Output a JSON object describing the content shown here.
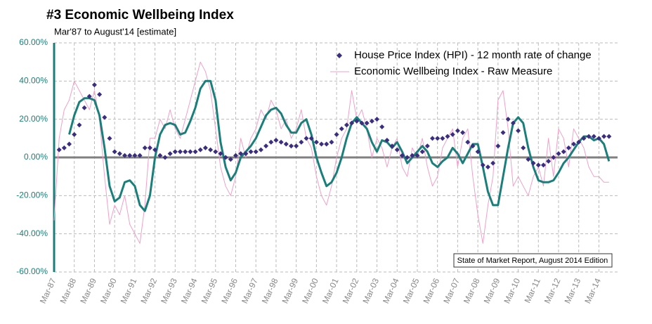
{
  "chart_data": {
    "type": "line",
    "title": "#3 Economic Wellbeing Index",
    "subtitle": "Mar'87 to August'14 [estimate]",
    "annotation": "State of Market Report, August 2014 Edition",
    "categories": [
      "Mar-87",
      null,
      null,
      null,
      "Mar-88",
      null,
      null,
      null,
      "Mar-89",
      null,
      null,
      null,
      "Mar-90",
      null,
      null,
      null,
      "Mar-91",
      null,
      null,
      null,
      "Mar-92",
      null,
      null,
      null,
      "Mar-93",
      null,
      null,
      null,
      "Mar-94",
      null,
      null,
      null,
      "Mar-95",
      null,
      null,
      null,
      "Mar-96",
      null,
      null,
      null,
      "Mar-97",
      null,
      null,
      null,
      "Mar-98",
      null,
      null,
      null,
      "Mar-99",
      null,
      null,
      null,
      "Mar-00",
      null,
      null,
      null,
      "Mar-01",
      null,
      null,
      null,
      "Mar-02",
      null,
      null,
      null,
      "Mar-03",
      null,
      null,
      null,
      "Mar-04",
      null,
      null,
      null,
      "Mar-05",
      null,
      null,
      null,
      "Mar-06",
      null,
      null,
      null,
      "Mar-07",
      null,
      null,
      null,
      "Mar-08",
      null,
      null,
      null,
      "Mar-09",
      null,
      null,
      null,
      "Mar-10",
      null,
      null,
      null,
      "Mar-11",
      null,
      null,
      null,
      "Mar-12",
      null,
      null,
      null,
      "Mar-13",
      null,
      null,
      null,
      "Mar-14",
      null,
      null
    ],
    "series": [
      {
        "name": "House Price Index (HPI) - 12 month rate of change",
        "style": "dots",
        "color": "#3b2d80",
        "values": [
          null,
          4,
          5,
          7,
          12,
          17,
          26,
          32,
          38,
          33,
          21,
          10,
          3,
          2,
          1,
          1,
          1,
          1,
          5,
          5,
          4,
          1,
          0,
          2,
          3,
          3,
          3,
          3,
          3,
          4,
          5,
          4,
          3,
          2,
          0,
          -1,
          1,
          2,
          2,
          3,
          3,
          4,
          6,
          8,
          9,
          8,
          7,
          6,
          6,
          8,
          10,
          10,
          8,
          7,
          7,
          8,
          12,
          15,
          17,
          18,
          19,
          18,
          18,
          19,
          20,
          16,
          9,
          6,
          4,
          1,
          0,
          1,
          1,
          3,
          6,
          10,
          10,
          10,
          11,
          12,
          14,
          13,
          8,
          6,
          3,
          -4,
          -5,
          -3,
          6,
          13,
          20,
          18,
          14,
          5,
          -1,
          -3,
          -4,
          -4,
          -2,
          0,
          2,
          3,
          5,
          7,
          8,
          10,
          11,
          11,
          10,
          11,
          11
        ]
      },
      {
        "name": "Economic Wellbeing Index - Raw Measure",
        "style": "thin",
        "color": "#f0a0c8",
        "values": [
          -33,
          10,
          25,
          30,
          40,
          35,
          30,
          25,
          35,
          20,
          -10,
          -35,
          -25,
          -30,
          -20,
          -35,
          -40,
          -45,
          -25,
          10,
          10,
          20,
          15,
          25,
          15,
          10,
          20,
          30,
          40,
          50,
          45,
          35,
          15,
          -5,
          -15,
          -20,
          -10,
          10,
          0,
          10,
          15,
          25,
          20,
          30,
          25,
          15,
          20,
          10,
          15,
          25,
          10,
          5,
          -10,
          -20,
          -25,
          -15,
          0,
          10,
          15,
          35,
          20,
          25,
          15,
          0,
          10,
          5,
          -5,
          5,
          10,
          -5,
          -10,
          5,
          0,
          10,
          -5,
          -15,
          -10,
          5,
          10,
          15,
          -5,
          10,
          15,
          -10,
          -30,
          -45,
          -25,
          -10,
          30,
          35,
          15,
          -15,
          -10,
          -15,
          -20,
          -10,
          -5,
          -15,
          10,
          -10,
          15,
          10,
          -5,
          15,
          10,
          5,
          -5,
          -10,
          -10,
          -13,
          -13
        ]
      },
      {
        "style": "thick",
        "color": "#1a7f7a",
        "values": [
          null,
          null,
          null,
          12,
          22,
          29,
          31,
          31,
          30,
          22,
          5,
          -15,
          -23,
          -21,
          -13,
          -12,
          -15,
          -25,
          -28,
          -20,
          0,
          12,
          17,
          18,
          17,
          12,
          13,
          19,
          26,
          36,
          40,
          40,
          30,
          8,
          -5,
          -12,
          -8,
          0,
          3,
          6,
          10,
          16,
          22,
          25,
          26,
          23,
          17,
          13,
          13,
          18,
          20,
          12,
          0,
          -8,
          -15,
          -13,
          -8,
          0,
          10,
          18,
          21,
          18,
          15,
          8,
          3,
          9,
          8,
          5,
          8,
          3,
          -3,
          0,
          3,
          6,
          3,
          -3,
          -5,
          -2,
          0,
          5,
          2,
          -3,
          2,
          7,
          7,
          -5,
          -18,
          -25,
          -25,
          -10,
          5,
          18,
          21,
          18,
          5,
          -5,
          -12,
          -13,
          -13,
          -12,
          -8,
          -3,
          0,
          4,
          8,
          11,
          11,
          9,
          10,
          7,
          -2
        ]
      }
    ],
    "ylim": [
      -60,
      60
    ],
    "yticks": [
      {
        "value": -60,
        "label": "-60.00%"
      },
      {
        "value": -40,
        "label": "-40.00%"
      },
      {
        "value": -20,
        "label": "-20.00%"
      },
      {
        "value": 0,
        "label": "0.00%"
      },
      {
        "value": 20,
        "label": "20.00%"
      },
      {
        "value": 40,
        "label": "40.00%"
      },
      {
        "value": 60,
        "label": "60.00%"
      }
    ],
    "grid": true,
    "legend": "upper right"
  }
}
